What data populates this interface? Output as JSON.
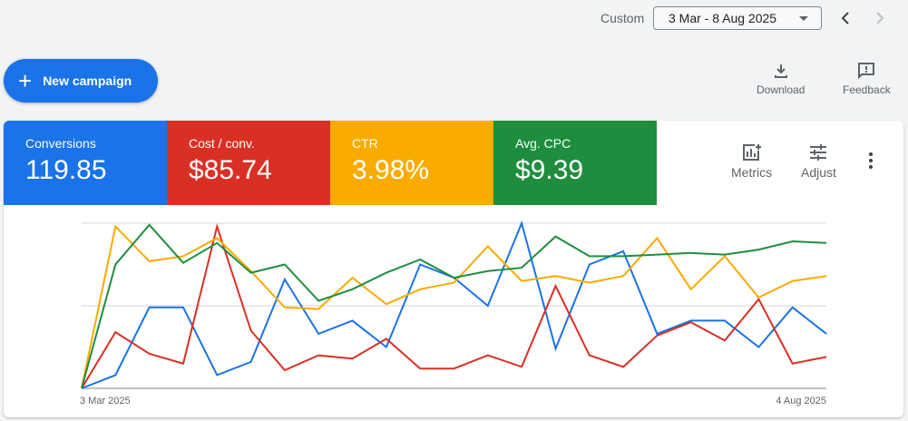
{
  "header": {
    "date_range_label": "Custom",
    "date_range_value": "3 Mar - 8 Aug 2025"
  },
  "actions": {
    "new_campaign": "New campaign",
    "download": "Download",
    "feedback": "Feedback"
  },
  "metrics": [
    {
      "label": "Conversions",
      "value": "119.85",
      "color": "#1a73e8"
    },
    {
      "label": "Cost / conv.",
      "value": "$85.74",
      "color": "#d93025"
    },
    {
      "label": "CTR",
      "value": "3.98%",
      "color": "#f9ab00"
    },
    {
      "label": "Avg. CPC",
      "value": "$9.39",
      "color": "#1e8e3e"
    }
  ],
  "chart_tools": {
    "metrics": "Metrics",
    "adjust": "Adjust"
  },
  "chart_data": {
    "type": "line",
    "x_start_label": "3 Mar 2025",
    "x_end_label": "4 Aug 2025",
    "ylim": [
      0,
      100
    ],
    "grid": true,
    "series": [
      {
        "metric": "Conversions",
        "color": "#1a73e8",
        "values": [
          0,
          8,
          49,
          49,
          8,
          16,
          66,
          33,
          41,
          25,
          75,
          67,
          50,
          100,
          24,
          75,
          83,
          33,
          41,
          41,
          25,
          49,
          33
        ]
      },
      {
        "metric": "Cost / conv.",
        "color": "#d93025",
        "values": [
          0,
          34,
          21,
          15,
          98,
          35,
          11,
          20,
          18,
          30,
          12,
          12,
          20,
          13,
          62,
          20,
          13,
          32,
          40,
          29,
          54,
          15,
          19
        ]
      },
      {
        "metric": "CTR",
        "color": "#f9ab00",
        "values": [
          0,
          98,
          77,
          80,
          91,
          71,
          49,
          48,
          67,
          51,
          60,
          64,
          86,
          65,
          68,
          64,
          68,
          91,
          60,
          80,
          55,
          65,
          68
        ]
      },
      {
        "metric": "Avg. CPC",
        "color": "#1e8e3e",
        "values": [
          0,
          75,
          99,
          76,
          88,
          70,
          75,
          53,
          60,
          70,
          78,
          67,
          71,
          73,
          92,
          80,
          80,
          81,
          82,
          81,
          84,
          89,
          88
        ]
      }
    ]
  }
}
